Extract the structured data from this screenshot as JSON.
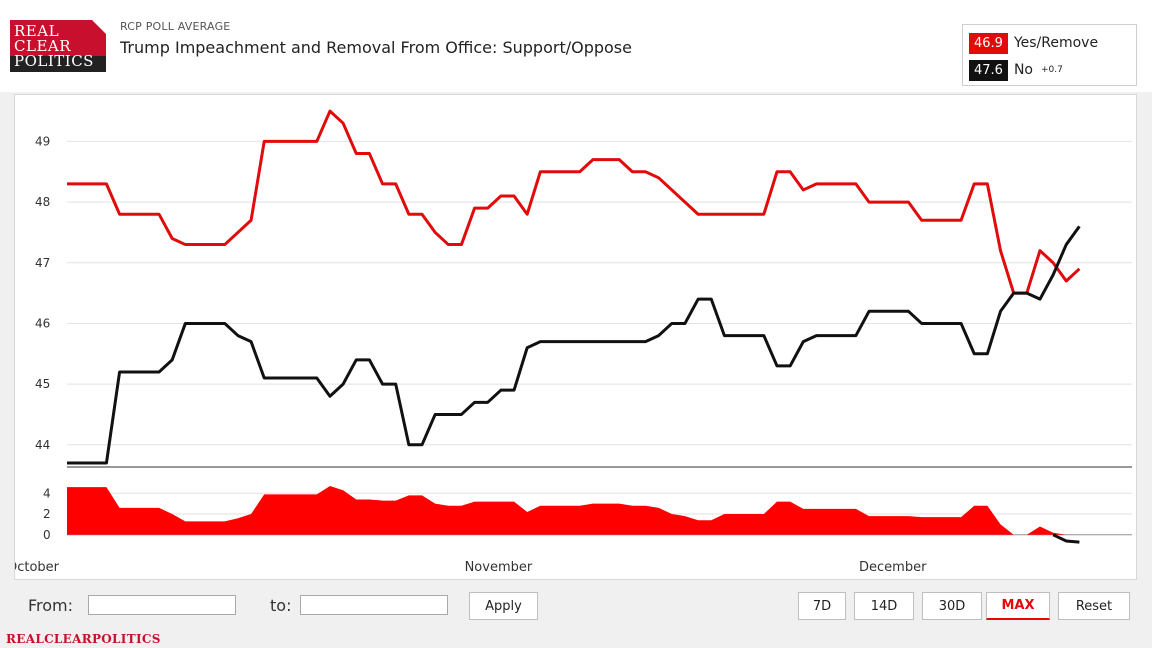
{
  "header": {
    "logo_lines": [
      "REAL",
      "CLEAR",
      "POLITICS"
    ],
    "eyebrow": "RCP POLL AVERAGE",
    "title": "Trump Impeachment and Removal From Office: Support/Oppose"
  },
  "legend": {
    "items": [
      {
        "value": "46.9",
        "label": "Yes/Remove",
        "change": "",
        "color": "#e10b0b"
      },
      {
        "value": "47.6",
        "label": "No",
        "change": "+0.7",
        "color": "#111111"
      }
    ]
  },
  "controls": {
    "from_label": "From:",
    "to_label": "to:",
    "from_value": "",
    "to_value": "",
    "apply_label": "Apply",
    "range_buttons": [
      "7D",
      "14D",
      "30D",
      "MAX"
    ],
    "active_range": "MAX",
    "reset_label": "Reset"
  },
  "footer": {
    "brand": "REALCLEARPOLITICS"
  },
  "colors": {
    "yes": "#e10b0b",
    "no": "#111111",
    "spread": "#ff0000",
    "grid": "#e2e2e2"
  },
  "chart_data": {
    "type": "line",
    "title": "Trump Impeachment and Removal From Office: Support/Oppose",
    "ylim": [
      43.7,
      49.6
    ],
    "yticks": [
      44,
      45,
      46,
      47,
      48,
      49
    ],
    "xlim": [
      0,
      81
    ],
    "xticks": [
      {
        "x": 0,
        "label": "October"
      },
      {
        "x": 31,
        "label": "November"
      },
      {
        "x": 61,
        "label": "December"
      }
    ],
    "series": [
      {
        "name": "Yes/Remove",
        "color": "#e10b0b",
        "points": [
          [
            0,
            48.3
          ],
          [
            3,
            48.3
          ],
          [
            4,
            47.8
          ],
          [
            7,
            47.8
          ],
          [
            8,
            47.4
          ],
          [
            9,
            47.3
          ],
          [
            12,
            47.3
          ],
          [
            14,
            47.7
          ],
          [
            15,
            49.0
          ],
          [
            19,
            49.0
          ],
          [
            20,
            49.5
          ],
          [
            21,
            49.3
          ],
          [
            22,
            48.8
          ],
          [
            23,
            48.8
          ],
          [
            24,
            48.3
          ],
          [
            25,
            48.3
          ],
          [
            26,
            47.8
          ],
          [
            27,
            47.8
          ],
          [
            28,
            47.5
          ],
          [
            29,
            47.3
          ],
          [
            30,
            47.3
          ],
          [
            31,
            47.9
          ],
          [
            32,
            47.9
          ],
          [
            33,
            48.1
          ],
          [
            34,
            48.1
          ],
          [
            35,
            47.8
          ],
          [
            36,
            48.5
          ],
          [
            39,
            48.5
          ],
          [
            40,
            48.7
          ],
          [
            42,
            48.7
          ],
          [
            43,
            48.5
          ],
          [
            44,
            48.5
          ],
          [
            45,
            48.4
          ],
          [
            48,
            47.8
          ],
          [
            53,
            47.8
          ],
          [
            54,
            48.5
          ],
          [
            55,
            48.5
          ],
          [
            56,
            48.2
          ],
          [
            57,
            48.3
          ],
          [
            60,
            48.3
          ],
          [
            61,
            48.0
          ],
          [
            64,
            48.0
          ],
          [
            65,
            47.7
          ],
          [
            68,
            47.7
          ],
          [
            69,
            48.3
          ],
          [
            70,
            48.3
          ],
          [
            71,
            47.2
          ],
          [
            72,
            46.5
          ],
          [
            73,
            46.5
          ],
          [
            74,
            47.2
          ],
          [
            75,
            47.0
          ],
          [
            76,
            46.7
          ],
          [
            77,
            46.9
          ]
        ]
      },
      {
        "name": "No",
        "color": "#111111",
        "points": [
          [
            0,
            43.7
          ],
          [
            3,
            43.7
          ],
          [
            4,
            45.2
          ],
          [
            7,
            45.2
          ],
          [
            8,
            45.4
          ],
          [
            9,
            46.0
          ],
          [
            12,
            46.0
          ],
          [
            13,
            45.8
          ],
          [
            14,
            45.7
          ],
          [
            15,
            45.1
          ],
          [
            19,
            45.1
          ],
          [
            20,
            44.8
          ],
          [
            21,
            45.0
          ],
          [
            22,
            45.4
          ],
          [
            23,
            45.4
          ],
          [
            24,
            45.0
          ],
          [
            25,
            45.0
          ],
          [
            26,
            44.0
          ],
          [
            27,
            44.0
          ],
          [
            28,
            44.5
          ],
          [
            30,
            44.5
          ],
          [
            31,
            44.7
          ],
          [
            32,
            44.7
          ],
          [
            33,
            44.9
          ],
          [
            34,
            44.9
          ],
          [
            35,
            45.6
          ],
          [
            36,
            45.7
          ],
          [
            44,
            45.7
          ],
          [
            45,
            45.8
          ],
          [
            46,
            46.0
          ],
          [
            47,
            46.0
          ],
          [
            48,
            46.4
          ],
          [
            49,
            46.4
          ],
          [
            50,
            45.8
          ],
          [
            53,
            45.8
          ],
          [
            54,
            45.3
          ],
          [
            55,
            45.3
          ],
          [
            56,
            45.7
          ],
          [
            57,
            45.8
          ],
          [
            60,
            45.8
          ],
          [
            61,
            46.2
          ],
          [
            64,
            46.2
          ],
          [
            65,
            46.0
          ],
          [
            68,
            46.0
          ],
          [
            69,
            45.5
          ],
          [
            70,
            45.5
          ],
          [
            71,
            46.2
          ],
          [
            72,
            46.5
          ],
          [
            73,
            46.5
          ],
          [
            74,
            46.4
          ],
          [
            75,
            46.8
          ],
          [
            76,
            47.3
          ],
          [
            77,
            47.6
          ]
        ]
      }
    ],
    "spread": {
      "name": "Spread",
      "ylim": [
        -0.5,
        4.8
      ],
      "yticks": [
        0,
        2,
        4
      ],
      "color": "#ff0000",
      "points": [
        [
          0,
          4.6
        ],
        [
          3,
          4.6
        ],
        [
          4,
          2.6
        ],
        [
          7,
          2.6
        ],
        [
          8,
          2.0
        ],
        [
          9,
          1.3
        ],
        [
          12,
          1.3
        ],
        [
          13,
          1.6
        ],
        [
          14,
          2.0
        ],
        [
          15,
          3.9
        ],
        [
          19,
          3.9
        ],
        [
          20,
          4.7
        ],
        [
          21,
          4.3
        ],
        [
          22,
          3.4
        ],
        [
          23,
          3.4
        ],
        [
          24,
          3.3
        ],
        [
          25,
          3.3
        ],
        [
          26,
          3.8
        ],
        [
          27,
          3.8
        ],
        [
          28,
          3.0
        ],
        [
          29,
          2.8
        ],
        [
          30,
          2.8
        ],
        [
          31,
          3.2
        ],
        [
          32,
          3.2
        ],
        [
          33,
          3.2
        ],
        [
          34,
          3.2
        ],
        [
          35,
          2.2
        ],
        [
          36,
          2.8
        ],
        [
          39,
          2.8
        ],
        [
          40,
          3.0
        ],
        [
          42,
          3.0
        ],
        [
          43,
          2.8
        ],
        [
          44,
          2.8
        ],
        [
          45,
          2.6
        ],
        [
          46,
          2.0
        ],
        [
          47,
          1.8
        ],
        [
          48,
          1.4
        ],
        [
          49,
          1.4
        ],
        [
          50,
          2.0
        ],
        [
          53,
          2.0
        ],
        [
          54,
          3.2
        ],
        [
          55,
          3.2
        ],
        [
          56,
          2.5
        ],
        [
          57,
          2.5
        ],
        [
          60,
          2.5
        ],
        [
          61,
          1.8
        ],
        [
          64,
          1.8
        ],
        [
          65,
          1.7
        ],
        [
          68,
          1.7
        ],
        [
          69,
          2.8
        ],
        [
          70,
          2.8
        ],
        [
          71,
          1.0
        ],
        [
          72,
          0.0
        ],
        [
          73,
          0.0
        ],
        [
          74,
          0.8
        ],
        [
          75,
          0.2
        ],
        [
          76,
          -0.6
        ],
        [
          77,
          -0.7
        ]
      ]
    }
  }
}
